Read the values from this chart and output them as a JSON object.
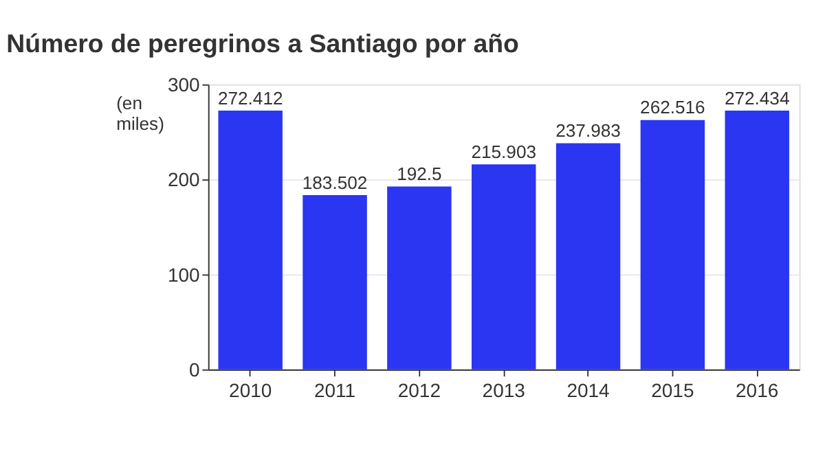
{
  "chart_data": {
    "type": "bar",
    "title": "Número de peregrinos a Santiago por año",
    "ylabel": "(en miles)",
    "categories": [
      "2010",
      "2011",
      "2012",
      "2013",
      "2014",
      "2015",
      "2016"
    ],
    "values": [
      272.412,
      183.502,
      192.5,
      215.903,
      237.983,
      262.516,
      272.434
    ],
    "color": "#2b36f2",
    "ylim": [
      0,
      300
    ],
    "yticks": [
      0,
      100,
      200,
      300
    ],
    "grid": "y",
    "data_labels": true
  }
}
